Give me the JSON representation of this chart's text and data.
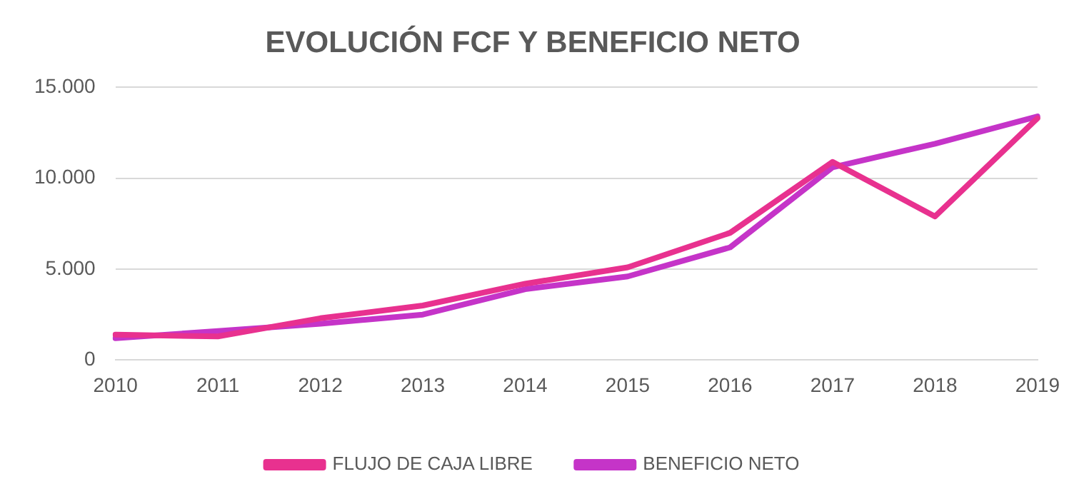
{
  "chart_data": {
    "type": "line",
    "title": "EVOLUCIÓN FCF Y BENEFICIO NETO",
    "categories": [
      "2010",
      "2011",
      "2012",
      "2013",
      "2014",
      "2015",
      "2016",
      "2017",
      "2018",
      "2019"
    ],
    "series": [
      {
        "name": "FLUJO DE CAJA LIBRE",
        "color": "#e8318f",
        "values": [
          1400,
          1300,
          2300,
          3000,
          4200,
          5100,
          7000,
          10900,
          7900,
          13300
        ]
      },
      {
        "name": "BENEFICIO NETO",
        "color": "#c534c8",
        "values": [
          1200,
          1600,
          2000,
          2500,
          3900,
          4600,
          6200,
          10600,
          11900,
          13400
        ]
      }
    ],
    "ylim": [
      0,
      15000
    ],
    "yticks": [
      0,
      {
        "value": 5000,
        "label": "5.000"
      },
      {
        "value": 10000,
        "label": "10.000"
      },
      {
        "value": 15000,
        "label": "15.000"
      }
    ],
    "grid": "y",
    "legend": "bottom",
    "marker": "none",
    "line_style": "solid"
  }
}
